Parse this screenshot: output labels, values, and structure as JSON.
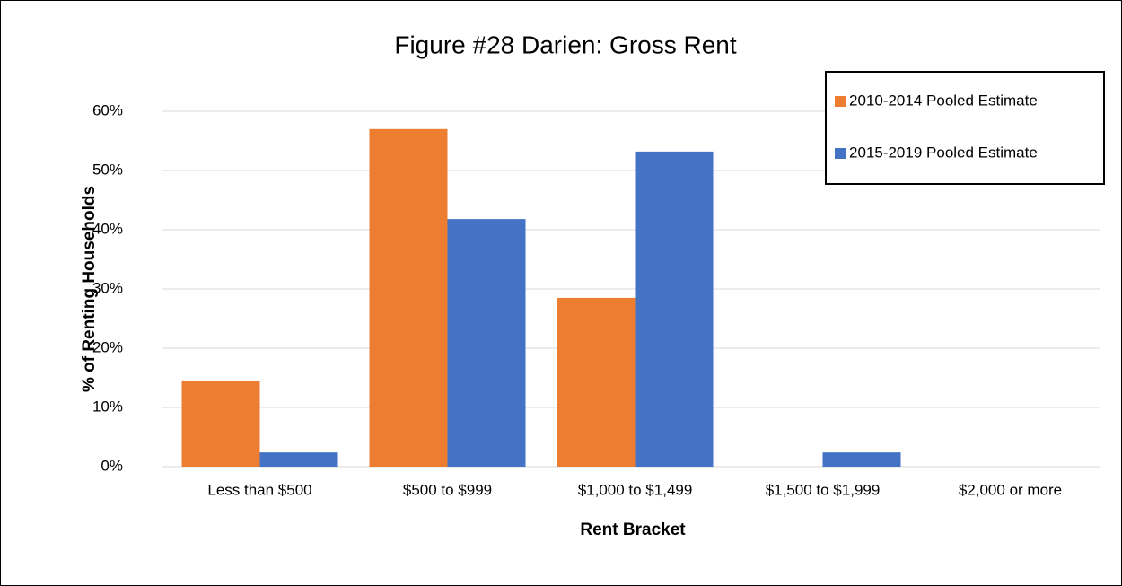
{
  "chart_data": {
    "type": "bar",
    "title": "Figure #28  Darien: Gross Rent",
    "x_label": "Rent Bracket",
    "y_label": "% of Renting Households",
    "categories": [
      "Less than $500",
      "$500 to $999",
      "$1,000 to $1,499",
      "$1,500 to $1,999",
      "$2,000 or more"
    ],
    "series": [
      {
        "name": "2010-2014 Pooled Estimate",
        "color": "#ed7d31",
        "values": [
          14.4,
          57,
          28.5,
          0,
          0
        ]
      },
      {
        "name": "2015-2019 Pooled Estimate",
        "color": "#4472c4",
        "values": [
          2.4,
          41.8,
          53.2,
          2.4,
          0
        ]
      }
    ],
    "ylim": [
      0,
      60
    ],
    "yticks": [
      {
        "value": 0,
        "label": "0%"
      },
      {
        "value": 10,
        "label": "10%"
      },
      {
        "value": 20,
        "label": "20%"
      },
      {
        "value": 30,
        "label": "30%"
      },
      {
        "value": 40,
        "label": "40%"
      },
      {
        "value": 50,
        "label": "50%"
      },
      {
        "value": 60,
        "label": "60%"
      }
    ],
    "grid": true,
    "legend": "top-right"
  }
}
